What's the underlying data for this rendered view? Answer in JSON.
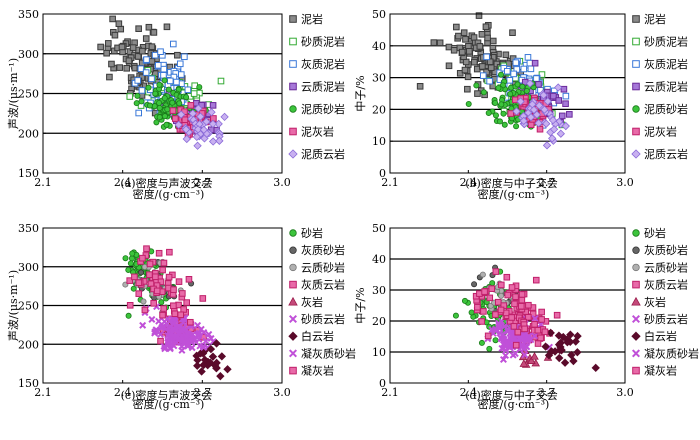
{
  "figure": {
    "panels": [
      {
        "caption": "(a)密度与声波交会"
      },
      {
        "caption": "(b)密度与中子交会"
      },
      {
        "caption": "(c)密度与声波交会"
      },
      {
        "caption": "(d)密度与中子交会"
      }
    ]
  },
  "chart_data": [
    {
      "type": "scatter",
      "title": "(a)密度与声波交会",
      "xlabel": "密度/(g·cm⁻³)",
      "ylabel": "声波/(μs·m⁻¹)",
      "xlim": [
        2.1,
        3.0
      ],
      "ylim": [
        150,
        350
      ],
      "xticks": [
        "2.1",
        "2.4",
        "2.7",
        "3.0"
      ],
      "yticks": [
        "150",
        "200",
        "250",
        "300",
        "350"
      ],
      "grid": "horizontal at 200, 250, 300",
      "legend_position": "right",
      "series": [
        {
          "name": "泥岩",
          "marker": "square",
          "color": "#3a3a3a",
          "fill": "#8a8a8a",
          "center": [
            2.46,
            288
          ],
          "spread": [
            0.07,
            22
          ],
          "count": 110
        },
        {
          "name": "砂质泥岩",
          "marker": "square-open",
          "color": "#33aa33",
          "fill": "none",
          "center": [
            2.6,
            245
          ],
          "spread": [
            0.07,
            14
          ],
          "count": 55
        },
        {
          "name": "灰质泥岩",
          "marker": "square-open",
          "color": "#3a78d8",
          "fill": "none",
          "center": [
            2.57,
            260
          ],
          "spread": [
            0.07,
            20
          ],
          "count": 70
        },
        {
          "name": "云质泥岩",
          "marker": "square",
          "color": "#6a2a9a",
          "fill": "#a678d8",
          "center": [
            2.66,
            220
          ],
          "spread": [
            0.05,
            12
          ],
          "count": 45
        },
        {
          "name": "泥质砂岩",
          "marker": "circle",
          "color": "#1a7a1a",
          "fill": "#3cc43c",
          "center": [
            2.58,
            235
          ],
          "spread": [
            0.06,
            14
          ],
          "count": 90
        },
        {
          "name": "泥灰岩",
          "marker": "square",
          "color": "#c0206a",
          "fill": "#e86aa8",
          "center": [
            2.65,
            215
          ],
          "spread": [
            0.04,
            8
          ],
          "count": 40
        },
        {
          "name": "泥质云岩",
          "marker": "diamond",
          "color": "#8a6ad8",
          "fill": "#c8b0f0",
          "center": [
            2.69,
            210
          ],
          "spread": [
            0.05,
            10
          ],
          "count": 40
        }
      ]
    },
    {
      "type": "scatter",
      "title": "(b)密度与中子交会",
      "xlabel": "密度/(g·cm⁻³)",
      "ylabel": "中子/%",
      "xlim": [
        2.1,
        3.0
      ],
      "ylim": [
        0,
        50
      ],
      "xticks": [
        "2.1",
        "2.4",
        "2.7",
        "3.0"
      ],
      "yticks": [
        "0",
        "10",
        "20",
        "30",
        "40",
        "50"
      ],
      "grid": "horizontal at 10, 20, 30, 40",
      "legend_position": "right",
      "series": [
        {
          "name": "泥岩",
          "marker": "square",
          "color": "#3a3a3a",
          "fill": "#8a8a8a",
          "center": [
            2.45,
            35
          ],
          "spread": [
            0.08,
            5
          ],
          "count": 110
        },
        {
          "name": "砂质泥岩",
          "marker": "square-open",
          "color": "#33aa33",
          "fill": "none",
          "center": [
            2.6,
            26
          ],
          "spread": [
            0.06,
            3.5
          ],
          "count": 55
        },
        {
          "name": "灰质泥岩",
          "marker": "square-open",
          "color": "#3a78d8",
          "fill": "none",
          "center": [
            2.6,
            27
          ],
          "spread": [
            0.07,
            4
          ],
          "count": 60
        },
        {
          "name": "云质泥岩",
          "marker": "square",
          "color": "#6a2a9a",
          "fill": "#a678d8",
          "center": [
            2.68,
            23
          ],
          "spread": [
            0.06,
            3
          ],
          "count": 40
        },
        {
          "name": "泥质砂岩",
          "marker": "circle",
          "color": "#1a7a1a",
          "fill": "#3cc43c",
          "center": [
            2.58,
            22
          ],
          "spread": [
            0.06,
            3.5
          ],
          "count": 90
        },
        {
          "name": "泥灰岩",
          "marker": "square",
          "color": "#c0206a",
          "fill": "#e86aa8",
          "center": [
            2.64,
            20
          ],
          "spread": [
            0.04,
            2.5
          ],
          "count": 40
        },
        {
          "name": "泥质云岩",
          "marker": "diamond",
          "color": "#8a6ad8",
          "fill": "#c8b0f0",
          "center": [
            2.68,
            18
          ],
          "spread": [
            0.06,
            4
          ],
          "count": 40
        }
      ]
    },
    {
      "type": "scatter",
      "title": "(c)密度与声波交会",
      "xlabel": "密度/(g·cm⁻³)",
      "ylabel": "声波/(μs·m⁻¹)",
      "xlim": [
        2.1,
        3.0
      ],
      "ylim": [
        150,
        350
      ],
      "xticks": [
        "2.1",
        "2.4",
        "2.7",
        "3.0"
      ],
      "yticks": [
        "150",
        "200",
        "250",
        "300",
        "350"
      ],
      "grid": "horizontal at 200, 250, 300",
      "legend_position": "right",
      "series": [
        {
          "name": "砂岩",
          "marker": "circle",
          "color": "#1a7a1a",
          "fill": "#3cc43c",
          "center": [
            2.49,
            290
          ],
          "spread": [
            0.05,
            18
          ],
          "count": 70
        },
        {
          "name": "灰质砂岩",
          "marker": "circle",
          "color": "#333333",
          "fill": "#666666",
          "center": [
            2.52,
            278
          ],
          "spread": [
            0.05,
            14
          ],
          "count": 15
        },
        {
          "name": "云质砂岩",
          "marker": "circle",
          "color": "#777777",
          "fill": "#b0b0b0",
          "center": [
            2.52,
            275
          ],
          "spread": [
            0.05,
            14
          ],
          "count": 20
        },
        {
          "name": "灰质云岩",
          "marker": "square",
          "color": "#c0206a",
          "fill": "#e86aa8",
          "center": [
            2.62,
            222
          ],
          "spread": [
            0.04,
            10
          ],
          "count": 40
        },
        {
          "name": "灰岩",
          "marker": "triangle",
          "color": "#9a1a4a",
          "fill": "#c44a7a",
          "center": [
            2.62,
            215
          ],
          "spread": [
            0.03,
            6
          ],
          "count": 6
        },
        {
          "name": "砂质云岩",
          "marker": "x",
          "color": "#c050d8",
          "fill": "#c050d8",
          "center": [
            2.6,
            215
          ],
          "spread": [
            0.05,
            10
          ],
          "count": 90
        },
        {
          "name": "白云岩",
          "marker": "diamond",
          "color": "#5a0a2a",
          "fill": "#5a0a2a",
          "center": [
            2.73,
            180
          ],
          "spread": [
            0.04,
            9
          ],
          "count": 22
        },
        {
          "name": "凝灰质砂岩",
          "marker": "x",
          "color": "#c050d8",
          "fill": "#c050d8",
          "center": [
            2.62,
            212
          ],
          "spread": [
            0.05,
            10
          ],
          "count": 30
        },
        {
          "name": "凝灰岩",
          "marker": "square",
          "color": "#c0206a",
          "fill": "#e86aa8",
          "center": [
            2.55,
            275
          ],
          "spread": [
            0.07,
            20
          ],
          "count": 55
        }
      ]
    },
    {
      "type": "scatter",
      "title": "(d)密度与中子交会",
      "xlabel": "密度/(g·cm⁻³)",
      "ylabel": "中子/%",
      "xlim": [
        2.1,
        3.0
      ],
      "ylim": [
        0,
        50
      ],
      "xticks": [
        "2.1",
        "2.4",
        "2.7",
        "3.0"
      ],
      "yticks": [
        "0",
        "10",
        "20",
        "30",
        "40",
        "50"
      ],
      "grid": "horizontal at 10, 20, 30, 40",
      "legend_position": "right",
      "series": [
        {
          "name": "砂岩",
          "marker": "circle",
          "color": "#1a7a1a",
          "fill": "#3cc43c",
          "center": [
            2.5,
            22
          ],
          "spread": [
            0.06,
            5
          ],
          "count": 70
        },
        {
          "name": "灰质砂岩",
          "marker": "circle",
          "color": "#333333",
          "fill": "#666666",
          "center": [
            2.52,
            28
          ],
          "spread": [
            0.05,
            3
          ],
          "count": 15
        },
        {
          "name": "云质砂岩",
          "marker": "circle",
          "color": "#777777",
          "fill": "#b0b0b0",
          "center": [
            2.53,
            30
          ],
          "spread": [
            0.05,
            3
          ],
          "count": 20
        },
        {
          "name": "灰质云岩",
          "marker": "square",
          "color": "#c0206a",
          "fill": "#e86aa8",
          "center": [
            2.63,
            20
          ],
          "spread": [
            0.04,
            4
          ],
          "count": 40
        },
        {
          "name": "灰岩",
          "marker": "triangle",
          "color": "#9a1a4a",
          "fill": "#c44a7a",
          "center": [
            2.63,
            8
          ],
          "spread": [
            0.04,
            2.5
          ],
          "count": 10
        },
        {
          "name": "砂质云岩",
          "marker": "x",
          "color": "#c050d8",
          "fill": "#c050d8",
          "center": [
            2.56,
            14
          ],
          "spread": [
            0.05,
            3
          ],
          "count": 70
        },
        {
          "name": "白云岩",
          "marker": "diamond",
          "color": "#5a0a2a",
          "fill": "#5a0a2a",
          "center": [
            2.76,
            12
          ],
          "spread": [
            0.04,
            3
          ],
          "count": 25
        },
        {
          "name": "凝灰质砂岩",
          "marker": "x",
          "color": "#c050d8",
          "fill": "#c050d8",
          "center": [
            2.6,
            16
          ],
          "spread": [
            0.05,
            3
          ],
          "count": 30
        },
        {
          "name": "凝灰岩",
          "marker": "square",
          "color": "#c0206a",
          "fill": "#e86aa8",
          "center": [
            2.56,
            24
          ],
          "spread": [
            0.08,
            5
          ],
          "count": 70
        }
      ]
    }
  ]
}
